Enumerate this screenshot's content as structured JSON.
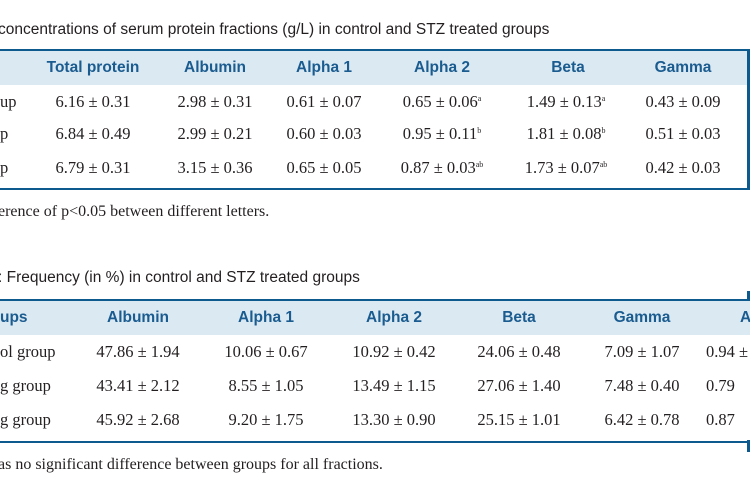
{
  "table1": {
    "caption": "concentrations of serum protein fractions (g/L) in control and STZ treated groups",
    "headers": [
      "",
      "Total protein",
      "Albumin",
      "Alpha 1",
      "Alpha 2",
      "Beta",
      "Gamma"
    ],
    "rows": [
      {
        "group": "up",
        "total_protein": "6.16 ± 0.31",
        "albumin": "2.98 ± 0.31",
        "alpha1": "0.61 ± 0.07",
        "alpha2": "0.65 ± 0.06",
        "alpha2_sup": "a",
        "beta": "1.49 ± 0.13",
        "beta_sup": "a",
        "gamma": "0.43 ± 0.09"
      },
      {
        "group": "p",
        "total_protein": "6.84 ± 0.49",
        "albumin": "2.99 ± 0.21",
        "alpha1": "0.60 ± 0.03",
        "alpha2": "0.95 ± 0.11",
        "alpha2_sup": "b",
        "beta": "1.81 ± 0.08",
        "beta_sup": "b",
        "gamma": "0.51 ± 0.03"
      },
      {
        "group": "p",
        "total_protein": "6.79 ± 0.31",
        "albumin": "3.15 ± 0.36",
        "alpha1": "0.65 ± 0.05",
        "alpha2": "0.87 ± 0.03",
        "alpha2_sup": "ab",
        "beta": "1.73 ± 0.07",
        "beta_sup": "ab",
        "gamma": "0.42 ± 0.03"
      }
    ],
    "footnote": "erence of p<0.05 between different letters."
  },
  "table2": {
    "caption": ":  Frequency (in %) in control and STZ treated groups",
    "headers": [
      "ups",
      "Albumin",
      "Alpha 1",
      "Alpha 2",
      "Beta",
      "Gamma",
      "A"
    ],
    "rows": [
      {
        "group": "ol group",
        "albumin": "47.86 ± 1.94",
        "alpha1": "10.06 ± 0.67",
        "alpha2": "10.92 ± 0.42",
        "beta": "24.06 ± 0.48",
        "gamma": "7.09 ± 1.07",
        "ag": "0.94 ±"
      },
      {
        "group": "g group",
        "albumin": "43.41 ± 2.12",
        "alpha1": "8.55 ± 1.05",
        "alpha2": "13.49 ± 1.15",
        "beta": "27.06 ± 1.40",
        "gamma": "7.48 ± 0.40",
        "ag": "0.79"
      },
      {
        "group": "g group",
        "albumin": "45.92 ± 2.68",
        "alpha1": "9.20 ± 1.75",
        "alpha2": "13.30 ± 0.90",
        "beta": "25.15 ± 1.01",
        "gamma": "6.42 ± 0.78",
        "ag": "0.87"
      }
    ],
    "footnote": "as no significant difference between groups for all fractions."
  }
}
